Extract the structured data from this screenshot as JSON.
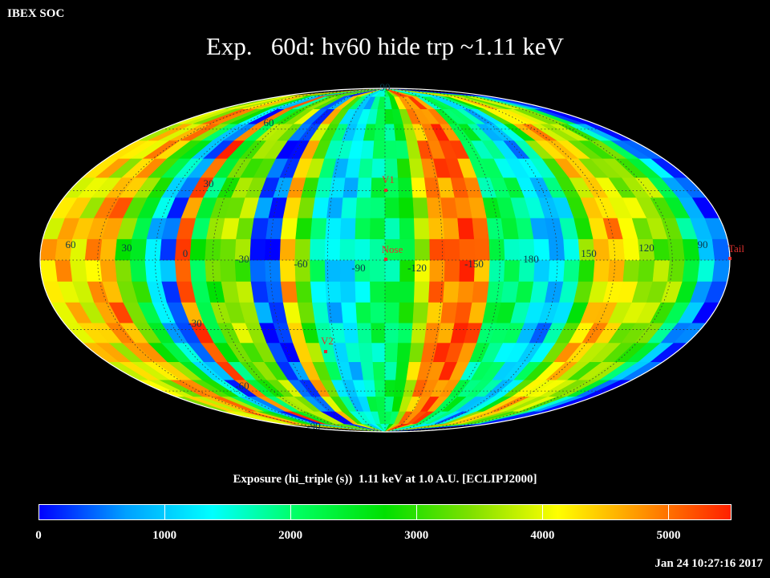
{
  "header": {
    "corner_label": "IBEX SOC",
    "title": "Exp.   60d: hv60 hide trp ~1.11 keV"
  },
  "map": {
    "projection": "Mollweide (ecliptic, J2000)",
    "longitude_labels": [
      "60",
      "30",
      "0",
      "-30",
      "-60",
      "-90",
      "-120",
      "-150",
      "180",
      "150",
      "120",
      "90"
    ],
    "latitude_labels": [
      "90",
      "60",
      "30",
      "-30",
      "-60",
      "-90"
    ],
    "markers": [
      {
        "label": "V1",
        "color": "#e0312f"
      },
      {
        "label": "Nose",
        "color": "#e0312f"
      },
      {
        "label": "V2",
        "color": "#e0312f"
      },
      {
        "label": "Tail",
        "color": "#e0312f"
      }
    ]
  },
  "colorbar": {
    "title": "Exposure (hi_triple (s))  1.11 keV at 1.0 A.U. [ECLIPJ2000]",
    "min": 0,
    "max": 5500,
    "ticks": [
      "0",
      "1000",
      "2000",
      "3000",
      "4000",
      "5000"
    ],
    "tick_values": [
      0,
      1000,
      2000,
      3000,
      4000,
      5000
    ],
    "stops": [
      "#0000ff",
      "#00a0ff",
      "#00ffff",
      "#00ff60",
      "#00e000",
      "#80e000",
      "#ffff00",
      "#ff9000",
      "#ff2000"
    ]
  },
  "footer": {
    "timestamp": "Jan 24 10:27:16 2017"
  }
}
